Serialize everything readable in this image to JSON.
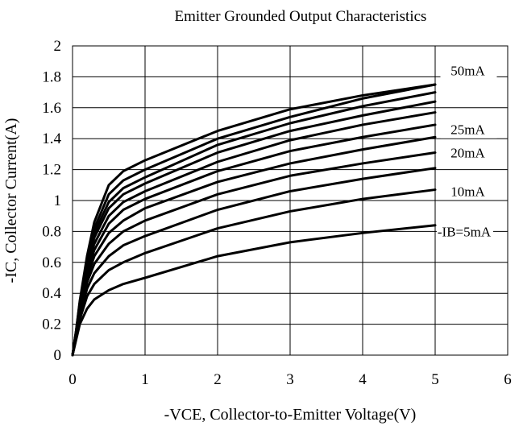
{
  "chart_data": {
    "type": "line",
    "title": "Emitter Grounded Output Characteristics",
    "xlabel": "-VCE, Collector-to-Emitter Voltage(V)",
    "ylabel": "-IC, Collector Current(A)",
    "xlim": [
      0,
      6
    ],
    "ylim": [
      0,
      2
    ],
    "xticks": [
      0,
      1,
      2,
      3,
      4,
      5,
      6
    ],
    "yticks": [
      0,
      0.2,
      0.4,
      0.6,
      0.8,
      1,
      1.2,
      1.4,
      1.6,
      1.8,
      2
    ],
    "xtick_labels": [
      "0",
      "1",
      "2",
      "3",
      "4",
      "5",
      "6"
    ],
    "ytick_labels": [
      "0",
      "0.2",
      "0.4",
      "0.6",
      "0.8",
      "1",
      "1.2",
      "1.4",
      "1.6",
      "1.8",
      "2"
    ],
    "grid": true,
    "colors": {
      "line": "#000000",
      "grid": "#000000",
      "background": "#ffffff"
    },
    "series": [
      {
        "x": [
          0,
          0.05,
          0.1,
          0.2,
          0.3,
          0.5,
          0.7,
          1,
          2,
          3,
          4,
          5
        ],
        "y": [
          0,
          0.1,
          0.2,
          0.3,
          0.36,
          0.42,
          0.46,
          0.5,
          0.64,
          0.73,
          0.79,
          0.84
        ]
      },
      {
        "x": [
          0,
          0.05,
          0.1,
          0.2,
          0.3,
          0.5,
          0.7,
          1,
          2,
          3,
          4,
          5
        ],
        "y": [
          0,
          0.11,
          0.23,
          0.38,
          0.46,
          0.55,
          0.6,
          0.66,
          0.82,
          0.93,
          1.01,
          1.07
        ]
      },
      {
        "x": [
          0,
          0.05,
          0.1,
          0.2,
          0.3,
          0.5,
          0.7,
          1,
          2,
          3,
          4,
          5
        ],
        "y": [
          0,
          0.12,
          0.25,
          0.43,
          0.53,
          0.64,
          0.71,
          0.77,
          0.94,
          1.06,
          1.14,
          1.21
        ]
      },
      {
        "x": [
          0,
          0.05,
          0.1,
          0.2,
          0.3,
          0.5,
          0.7,
          1,
          2,
          3,
          4,
          5
        ],
        "y": [
          0,
          0.13,
          0.27,
          0.47,
          0.59,
          0.72,
          0.8,
          0.87,
          1.04,
          1.16,
          1.24,
          1.31
        ]
      },
      {
        "x": [
          0,
          0.05,
          0.1,
          0.2,
          0.3,
          0.5,
          0.7,
          1,
          2,
          3,
          4,
          5
        ],
        "y": [
          0,
          0.13,
          0.28,
          0.5,
          0.64,
          0.79,
          0.87,
          0.95,
          1.12,
          1.24,
          1.33,
          1.41
        ]
      },
      {
        "x": [
          0,
          0.05,
          0.1,
          0.2,
          0.3,
          0.5,
          0.7,
          1,
          2,
          3,
          4,
          5
        ],
        "y": [
          0,
          0.14,
          0.3,
          0.53,
          0.68,
          0.85,
          0.94,
          1.01,
          1.19,
          1.32,
          1.41,
          1.49
        ]
      },
      {
        "x": [
          0,
          0.05,
          0.1,
          0.2,
          0.3,
          0.5,
          0.7,
          1,
          2,
          3,
          4,
          5
        ],
        "y": [
          0,
          0.14,
          0.31,
          0.56,
          0.72,
          0.9,
          0.99,
          1.06,
          1.25,
          1.39,
          1.49,
          1.57
        ]
      },
      {
        "x": [
          0,
          0.05,
          0.1,
          0.2,
          0.3,
          0.5,
          0.7,
          1,
          2,
          3,
          4,
          5
        ],
        "y": [
          0,
          0.15,
          0.32,
          0.58,
          0.76,
          0.95,
          1.04,
          1.11,
          1.31,
          1.45,
          1.55,
          1.64
        ]
      },
      {
        "x": [
          0,
          0.05,
          0.1,
          0.2,
          0.3,
          0.5,
          0.7,
          1,
          2,
          3,
          4,
          5
        ],
        "y": [
          0,
          0.15,
          0.33,
          0.6,
          0.79,
          0.99,
          1.08,
          1.15,
          1.36,
          1.5,
          1.61,
          1.7
        ]
      },
      {
        "x": [
          0,
          0.05,
          0.1,
          0.2,
          0.3,
          0.5,
          0.7,
          1,
          2,
          3,
          4,
          5
        ],
        "y": [
          0,
          0.16,
          0.34,
          0.62,
          0.82,
          1.04,
          1.13,
          1.2,
          1.4,
          1.54,
          1.66,
          1.75
        ]
      },
      {
        "x": [
          0,
          0.05,
          0.1,
          0.2,
          0.3,
          0.5,
          0.7,
          1,
          2,
          3,
          4,
          5
        ],
        "y": [
          0,
          0.16,
          0.35,
          0.64,
          0.86,
          1.1,
          1.19,
          1.26,
          1.45,
          1.59,
          1.68,
          1.75
        ]
      }
    ],
    "annotations": [
      {
        "text": "50mA",
        "x": 5.45,
        "y": 1.84
      },
      {
        "text": "25mA",
        "x": 5.45,
        "y": 1.46
      },
      {
        "text": "20mA",
        "x": 5.45,
        "y": 1.31
      },
      {
        "text": "10mA",
        "x": 5.45,
        "y": 1.06
      },
      {
        "text": "-IB=5mA",
        "x": 5.4,
        "y": 0.8
      }
    ]
  }
}
